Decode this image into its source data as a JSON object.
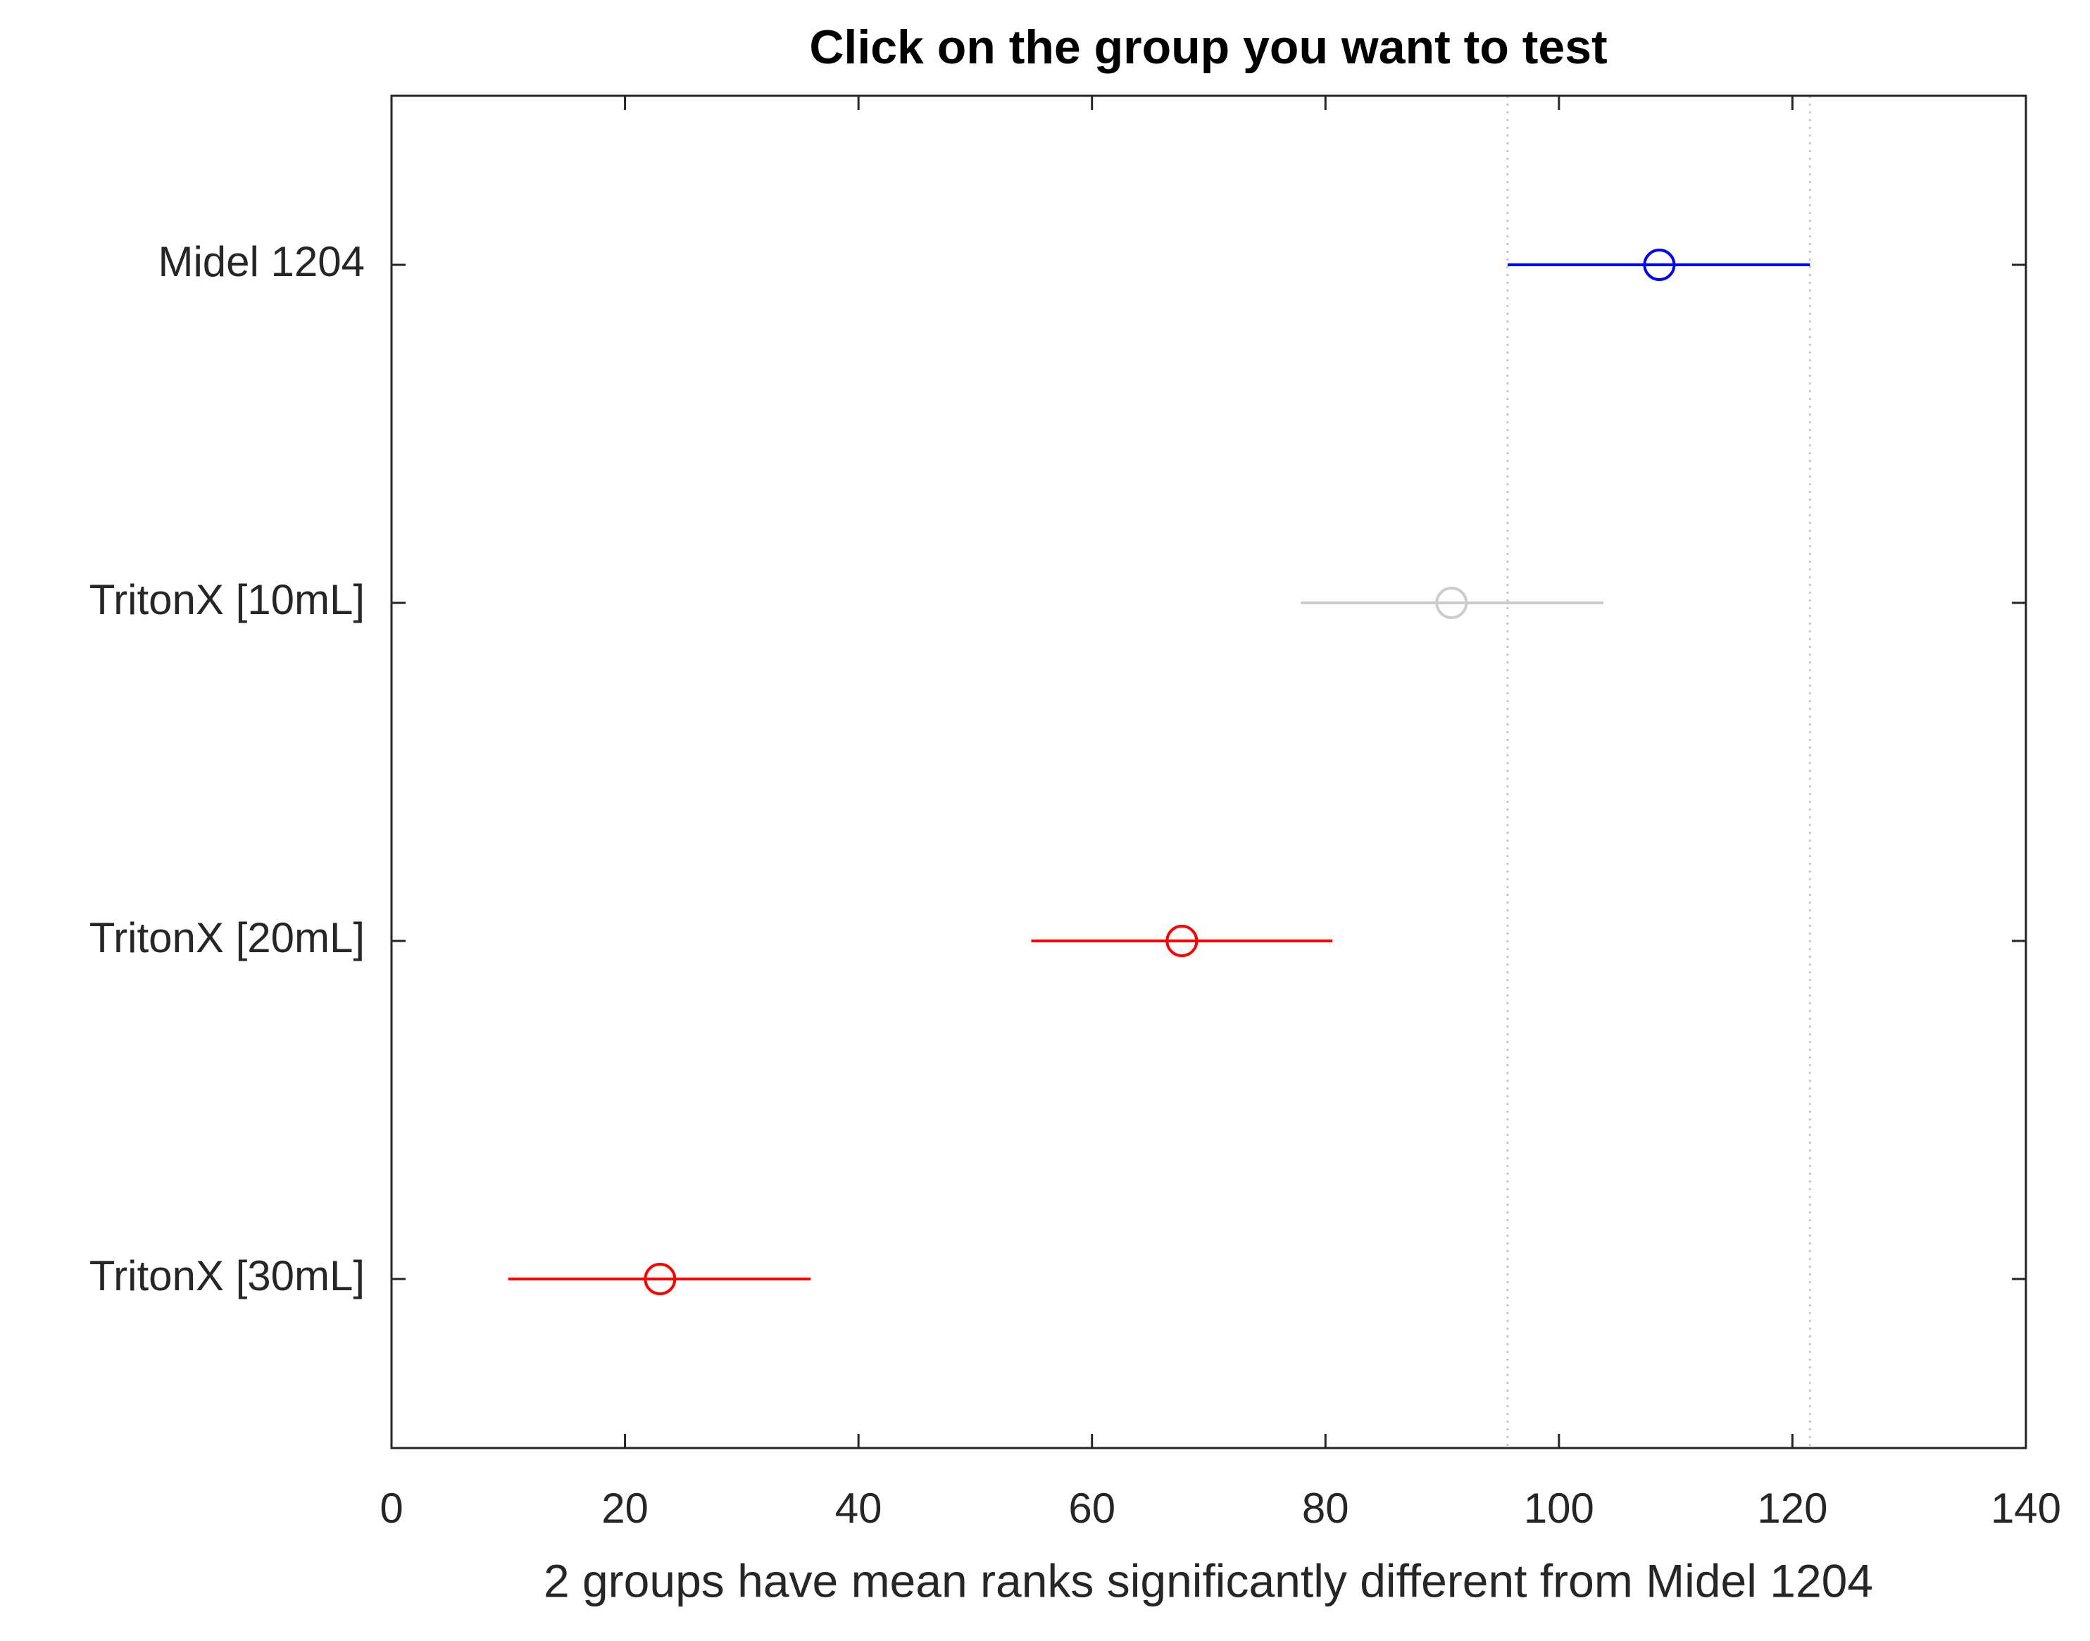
{
  "chart_data": {
    "type": "interval",
    "title": "Click on the group you want to test",
    "xlabel": "2 groups have mean ranks significantly different from Midel 1204",
    "categories": [
      "Midel 1204",
      "TritonX [10mL]",
      "TritonX [20mL]",
      "TritonX [30mL]"
    ],
    "values": [
      108.6,
      90.8,
      67.7,
      23.0
    ],
    "lower": [
      95.6,
      77.9,
      54.8,
      10.0
    ],
    "upper": [
      121.5,
      103.8,
      80.6,
      35.9
    ],
    "colors": [
      "#0000ff",
      "#cccccc",
      "#ff0000",
      "#ff0000"
    ],
    "reference_lines": [
      95.6,
      121.5
    ],
    "xlim": [
      0,
      140
    ],
    "xticks": [
      0,
      20,
      40,
      60,
      80,
      100,
      120,
      140
    ]
  }
}
